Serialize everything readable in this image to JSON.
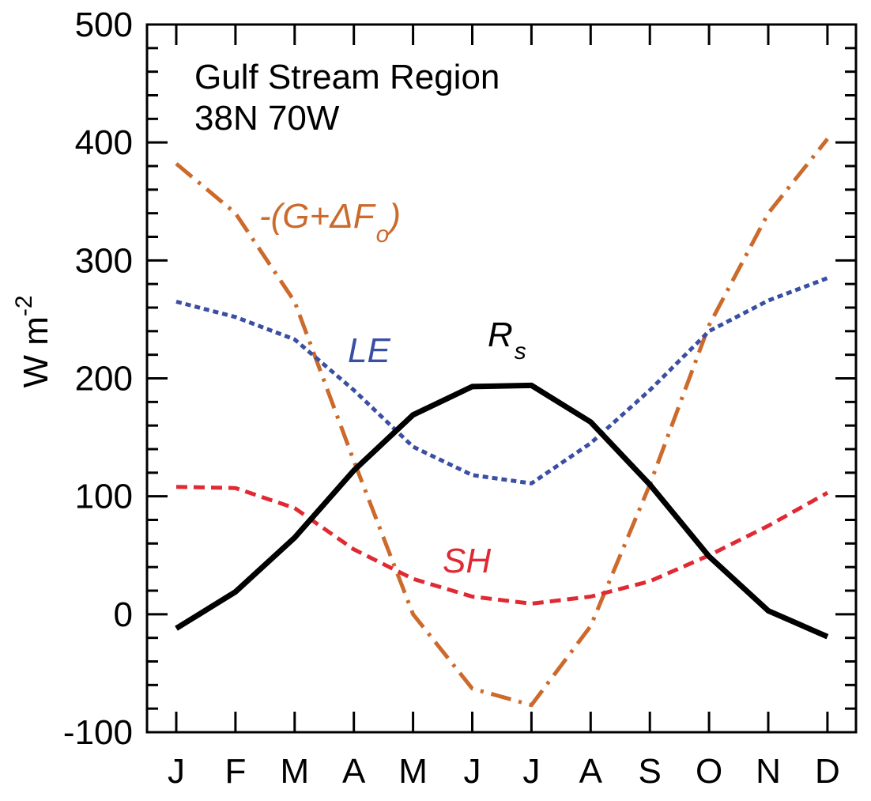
{
  "chart_data": {
    "type": "line",
    "title": "Gulf Stream Region",
    "subtitle": "38N 70W",
    "xlabel": "",
    "ylabel": {
      "base": "W m",
      "sup": "-2"
    },
    "categories": [
      "J",
      "F",
      "M",
      "A",
      "M",
      "J",
      "J",
      "A",
      "S",
      "O",
      "N",
      "D"
    ],
    "ylim": [
      -100,
      500
    ],
    "yticks": [
      "-100",
      "0",
      "100",
      "200",
      "300",
      "400",
      "500"
    ],
    "grid": false,
    "series": [
      {
        "name": "R_s",
        "label": {
          "main": "R",
          "sub": "s"
        },
        "color": "#000000",
        "style": "solid",
        "values": [
          -12,
          19,
          65,
          122,
          169,
          193,
          194,
          163,
          110,
          49,
          3,
          -19
        ]
      },
      {
        "name": "LE",
        "label": {
          "main": "LE"
        },
        "color": "#3a4ea3",
        "style": "dotted",
        "values": [
          265,
          252,
          233,
          190,
          142,
          118,
          111,
          145,
          190,
          240,
          266,
          285
        ]
      },
      {
        "name": "SH",
        "label": {
          "main": "SH"
        },
        "color": "#e02a33",
        "style": "dashed",
        "values": [
          108,
          107,
          90,
          55,
          30,
          15,
          9,
          15,
          28,
          50,
          75,
          103
        ]
      },
      {
        "name": "-(G+ΔF_o)",
        "label": {
          "main": "-(G+ΔF",
          "sub": "o",
          "close": ")"
        },
        "color": "#cc6a2c",
        "style": "dash-dot",
        "values": [
          382,
          340,
          265,
          130,
          0,
          -63,
          -77,
          -10,
          110,
          245,
          340,
          403
        ]
      }
    ]
  }
}
